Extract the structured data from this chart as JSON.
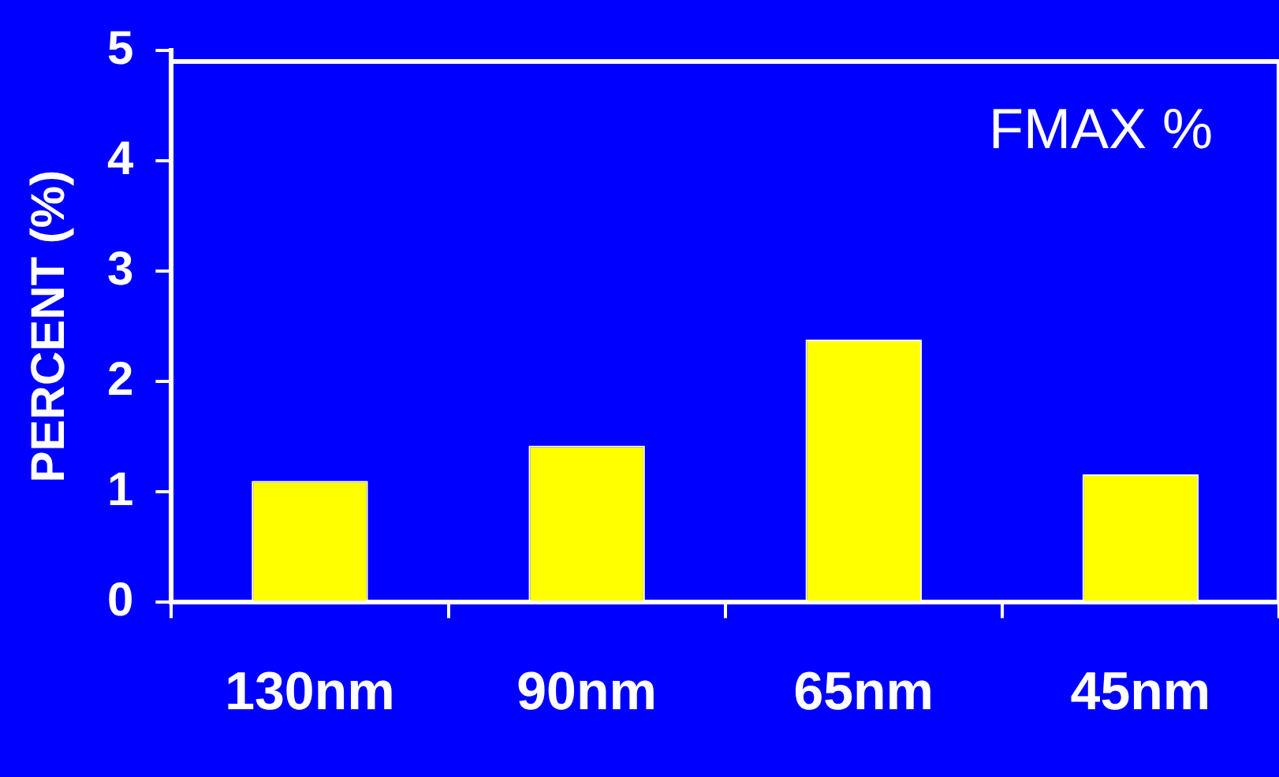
{
  "chart_data": {
    "type": "bar",
    "ylabel": "PERCENT (%)",
    "categories": [
      "130nm",
      "90nm",
      "65nm",
      "45nm"
    ],
    "values": [
      1.1,
      1.42,
      2.38,
      1.16
    ],
    "color": "#ffff00",
    "ylim": [
      0,
      5
    ],
    "yticks": [
      0,
      1,
      2,
      3,
      4,
      5
    ],
    "grid": false,
    "legend": false,
    "annotations": [
      "FMAX %"
    ]
  }
}
